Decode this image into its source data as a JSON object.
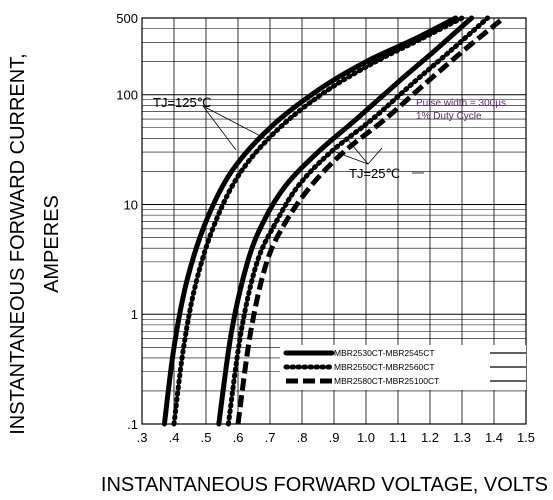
{
  "chart_data": {
    "type": "line",
    "title": "",
    "xlabel": "INSTANTANEOUS FORWARD VOLTAGE,  VOLTS",
    "ylabel_line1": "INSTANTANEOUS FORWARD CURRENT,",
    "ylabel_line2": "AMPERES",
    "x_scale": "linear",
    "y_scale": "log",
    "xlim": [
      0.3,
      1.5
    ],
    "ylim": [
      0.1,
      500
    ],
    "grid": true,
    "x_ticks": [
      {
        "v": 0.3,
        "label": ".3"
      },
      {
        "v": 0.4,
        "label": ".4"
      },
      {
        "v": 0.5,
        "label": ".5"
      },
      {
        "v": 0.6,
        "label": ".6"
      },
      {
        "v": 0.7,
        "label": ".7"
      },
      {
        "v": 0.8,
        "label": ".8"
      },
      {
        "v": 0.9,
        "label": ".9"
      },
      {
        "v": 1.0,
        "label": "1.0"
      },
      {
        "v": 1.1,
        "label": "1.1"
      },
      {
        "v": 1.2,
        "label": "1.2"
      },
      {
        "v": 1.3,
        "label": "1.3"
      },
      {
        "v": 1.4,
        "label": "1.4"
      },
      {
        "v": 1.5,
        "label": "1.5"
      }
    ],
    "y_ticks": [
      {
        "v": 0.1,
        "label": ".1"
      },
      {
        "v": 1,
        "label": "1"
      },
      {
        "v": 10,
        "label": "10"
      },
      {
        "v": 100,
        "label": "100"
      },
      {
        "v": 500,
        "label": "500"
      }
    ],
    "annotations": {
      "tj_high": "TJ=125℃",
      "tj_low": "TJ=25℃",
      "pulse_line1": "Pulse width = 300µs",
      "pulse_line2": "1% Duty Cycle"
    },
    "legend_position": "bottom-right",
    "series": [
      {
        "name": "MBR2530CT-MBR2545CT",
        "group": "TJ=125℃",
        "style": "solid",
        "points": [
          [
            0.37,
            0.1
          ],
          [
            0.4,
            0.5
          ],
          [
            0.44,
            2
          ],
          [
            0.5,
            7
          ],
          [
            0.58,
            20
          ],
          [
            0.7,
            50
          ],
          [
            0.85,
            110
          ],
          [
            1.0,
            200
          ],
          [
            1.15,
            320
          ],
          [
            1.28,
            500
          ]
        ]
      },
      {
        "name": "MBR2530CT-MBR2545CT",
        "group": "TJ=25℃",
        "style": "solid",
        "points": [
          [
            0.54,
            0.1
          ],
          [
            0.58,
            0.7
          ],
          [
            0.63,
            3
          ],
          [
            0.68,
            7
          ],
          [
            0.75,
            15
          ],
          [
            0.85,
            30
          ],
          [
            0.97,
            60
          ],
          [
            1.1,
            130
          ],
          [
            1.22,
            260
          ],
          [
            1.33,
            500
          ]
        ]
      },
      {
        "name": "MBR2550CT-MBR2560CT",
        "group": "TJ=125℃",
        "style": "dotted",
        "points": [
          [
            0.4,
            0.1
          ],
          [
            0.43,
            0.5
          ],
          [
            0.47,
            2
          ],
          [
            0.53,
            7
          ],
          [
            0.61,
            20
          ],
          [
            0.73,
            50
          ],
          [
            0.88,
            110
          ],
          [
            1.03,
            200
          ],
          [
            1.17,
            320
          ],
          [
            1.3,
            500
          ]
        ]
      },
      {
        "name": "MBR2550CT-MBR2560CT",
        "group": "TJ=25℃",
        "style": "dotted",
        "points": [
          [
            0.57,
            0.1
          ],
          [
            0.61,
            0.7
          ],
          [
            0.66,
            3
          ],
          [
            0.72,
            7
          ],
          [
            0.79,
            15
          ],
          [
            0.89,
            30
          ],
          [
            1.02,
            60
          ],
          [
            1.15,
            130
          ],
          [
            1.27,
            260
          ],
          [
            1.38,
            500
          ]
        ]
      },
      {
        "name": "MBR2580CT-MBR25100CT",
        "group": "TJ=25℃",
        "style": "dashed",
        "points": [
          [
            0.6,
            0.1
          ],
          [
            0.64,
            0.7
          ],
          [
            0.69,
            3
          ],
          [
            0.75,
            7
          ],
          [
            0.83,
            15
          ],
          [
            0.93,
            30
          ],
          [
            1.06,
            60
          ],
          [
            1.19,
            130
          ],
          [
            1.31,
            260
          ],
          [
            1.43,
            500
          ]
        ]
      }
    ],
    "legend": [
      {
        "label": "MBR2530CT-MBR2545CT",
        "style": "solid"
      },
      {
        "label": "MBR2550CT-MBR2560CT",
        "style": "dotted"
      },
      {
        "label": "MBR2580CT-MBR25100CT",
        "style": "dashed"
      }
    ]
  }
}
